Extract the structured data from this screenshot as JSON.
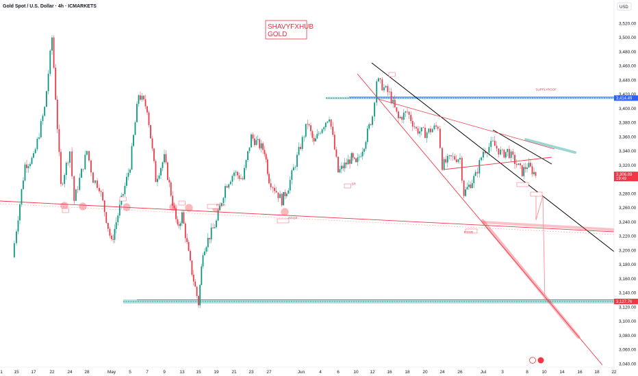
{
  "header": {
    "title": "Gold Spot / U.S. Dollar · 4h · ICMARKETS",
    "currency": "USD"
  },
  "watermark": {
    "line1": "SHAVYFXHUB",
    "line2": "GOLD"
  },
  "colors": {
    "up": "#089981",
    "down": "#f23645",
    "trend_black": "#000000",
    "trend_red": "#f23645",
    "level_green": "#26a69a",
    "level_blue": "#2962ff",
    "arrow": "#ff8a95"
  },
  "chart_data": {
    "type": "candlestick",
    "title": "Gold Spot / U.S. Dollar · 4h · ICMARKETS",
    "ylim": [
      3040,
      3540
    ],
    "y_ticks": [
      3040,
      3060,
      3080,
      3100,
      3120,
      3140,
      3160,
      3180,
      3200,
      3220,
      3240,
      3260,
      3280,
      3300,
      3320,
      3340,
      3360,
      3380,
      3400,
      3420,
      3440,
      3460,
      3480,
      3500,
      3520
    ],
    "y_tick_labels": [
      "3,040.00",
      "3,060.00",
      "3,080.00",
      "3,100.00",
      "3,120.00",
      "3,140.00",
      "3,160.00",
      "3,180.00",
      "3,200.00",
      "3,220.00",
      "3,240.00",
      "3,260.00",
      "3,280.00",
      "3,300.00",
      "3,320.00",
      "3,340.00",
      "3,360.00",
      "3,380.00",
      "3,400.00",
      "3,420.00",
      "3,440.00",
      "3,460.00",
      "3,480.00",
      "3,500.00",
      "3,520.00"
    ],
    "x_ticks": [
      "1",
      "15",
      "17",
      "22",
      "24",
      "28",
      "May",
      "5",
      "7",
      "9",
      "13",
      "15",
      "19",
      "21",
      "23",
      "27",
      "Jun",
      "4",
      "6",
      "10",
      "12",
      "16",
      "18",
      "20",
      "24",
      "26",
      "Jul",
      "3",
      "8",
      "10",
      "14",
      "16",
      "18",
      "22"
    ],
    "price_series": [
      {
        "date": "Apr 11",
        "price": 3190
      },
      {
        "date": "Apr 15",
        "price": 3230
      },
      {
        "date": "Apr 16",
        "price": 3320
      },
      {
        "date": "Apr 17",
        "price": 3330
      },
      {
        "date": "Apr 20",
        "price": 3400
      },
      {
        "date": "Apr 22",
        "price": 3500
      },
      {
        "date": "Apr 23",
        "price": 3290
      },
      {
        "date": "Apr 24",
        "price": 3340
      },
      {
        "date": "Apr 25",
        "price": 3270
      },
      {
        "date": "Apr 28",
        "price": 3340
      },
      {
        "date": "Apr 29",
        "price": 3300
      },
      {
        "date": "Apr 30",
        "price": 3290
      },
      {
        "date": "May 1",
        "price": 3210
      },
      {
        "date": "May 2",
        "price": 3240
      },
      {
        "date": "May 5",
        "price": 3320
      },
      {
        "date": "May 6",
        "price": 3420
      },
      {
        "date": "May 7",
        "price": 3400
      },
      {
        "date": "May 8",
        "price": 3300
      },
      {
        "date": "May 9",
        "price": 3330
      },
      {
        "date": "May 12",
        "price": 3230
      },
      {
        "date": "May 13",
        "price": 3250
      },
      {
        "date": "May 14",
        "price": 3180
      },
      {
        "date": "May 15",
        "price": 3125
      },
      {
        "date": "May 16",
        "price": 3200
      },
      {
        "date": "May 19",
        "price": 3240
      },
      {
        "date": "May 20",
        "price": 3290
      },
      {
        "date": "May 21",
        "price": 3310
      },
      {
        "date": "May 22",
        "price": 3300
      },
      {
        "date": "May 23",
        "price": 3360
      },
      {
        "date": "May 26",
        "price": 3340
      },
      {
        "date": "May 27",
        "price": 3300
      },
      {
        "date": "May 29",
        "price": 3270
      },
      {
        "date": "May 30",
        "price": 3290
      },
      {
        "date": "Jun 2",
        "price": 3380
      },
      {
        "date": "Jun 3",
        "price": 3350
      },
      {
        "date": "Jun 4",
        "price": 3370
      },
      {
        "date": "Jun 5",
        "price": 3390
      },
      {
        "date": "Jun 6",
        "price": 3310
      },
      {
        "date": "Jun 9",
        "price": 3330
      },
      {
        "date": "Jun 10",
        "price": 3320
      },
      {
        "date": "Jun 11",
        "price": 3350
      },
      {
        "date": "Jun 12",
        "price": 3390
      },
      {
        "date": "Jun 13",
        "price": 3440
      },
      {
        "date": "Jun 16",
        "price": 3420
      },
      {
        "date": "Jun 17",
        "price": 3385
      },
      {
        "date": "Jun 18",
        "price": 3395
      },
      {
        "date": "Jun 19",
        "price": 3370
      },
      {
        "date": "Jun 20",
        "price": 3365
      },
      {
        "date": "Jun 23",
        "price": 3375
      },
      {
        "date": "Jun 24",
        "price": 3320
      },
      {
        "date": "Jun 25",
        "price": 3330
      },
      {
        "date": "Jun 26",
        "price": 3330
      },
      {
        "date": "Jun 27",
        "price": 3280
      },
      {
        "date": "Jun 30",
        "price": 3305
      },
      {
        "date": "Jul 1",
        "price": 3340
      },
      {
        "date": "Jul 2",
        "price": 3350
      },
      {
        "date": "Jul 3",
        "price": 3335
      },
      {
        "date": "Jul 4",
        "price": 3340
      },
      {
        "date": "Jul 7",
        "price": 3310
      },
      {
        "date": "Jul 8",
        "price": 3320
      },
      {
        "date": "Jul 9",
        "price": 3306.89
      }
    ],
    "price_labels": [
      {
        "name": "supply-roof-level",
        "value": 3414.49,
        "label": "3,414.49",
        "color": "#2962ff"
      },
      {
        "name": "current-price",
        "value": 3306.89,
        "label": "3,306.89",
        "sub": "19:49",
        "color": "#f23645"
      },
      {
        "name": "support-level",
        "value": 3127.76,
        "label": "3,127.76",
        "color": "#f23645"
      }
    ],
    "annotations": [
      {
        "text": "SUPPLYROOF",
        "date": "Jul 9",
        "price": 3425
      },
      {
        "text": "RT/SR",
        "date": "May 30",
        "price": 3244
      },
      {
        "text": "RT/SR",
        "date": "Jun 27",
        "price": 3224
      },
      {
        "text": "SR",
        "date": "Jun 9",
        "price": 3292
      },
      {
        "text": "RT/SR",
        "date": "May 19",
        "price": 3262
      }
    ],
    "x_axis_dates": [
      "Apr 1",
      "Apr 15",
      "Apr 17",
      "Apr 22",
      "Apr 24",
      "Apr 28",
      "May 1",
      "May 5",
      "May 7",
      "May 9",
      "May 13",
      "May 15",
      "May 19",
      "May 21",
      "May 23",
      "May 27",
      "Jun 1",
      "Jun 4",
      "Jun 6",
      "Jun 10",
      "Jun 12",
      "Jun 16",
      "Jun 18",
      "Jun 20",
      "Jun 24",
      "Jun 26",
      "Jul 1",
      "Jul 3",
      "Jul 8",
      "Jul 10",
      "Jul 14",
      "Jul 16",
      "Jul 18",
      "Jul 22"
    ],
    "legend": "none",
    "grid": false
  }
}
